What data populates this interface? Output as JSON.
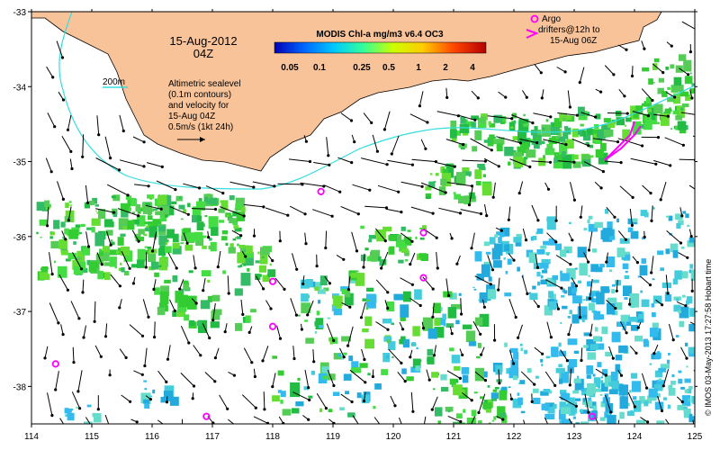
{
  "map": {
    "lon_range": [
      114,
      125
    ],
    "lat_range": [
      -38.5,
      -33
    ],
    "x_ticks": [
      "114",
      "115",
      "116",
      "117",
      "118",
      "119",
      "120",
      "121",
      "122",
      "123",
      "124",
      "125"
    ],
    "y_ticks": [
      "-33",
      "-34",
      "-35",
      "-36",
      "-37",
      "-38"
    ],
    "land_color": "#f9c39a",
    "sealevel_contour_color": "#33dddd"
  },
  "title_block": {
    "date": "15-Aug-2012",
    "time": "04Z"
  },
  "colorbar": {
    "title": "MODIS Chl-a mg/m3 v6.4 OC3",
    "labels": [
      "0.05",
      "0.1",
      "0.25",
      "0.5",
      "1",
      "2",
      "4"
    ],
    "colors": [
      "#0000b4",
      "#0066ff",
      "#00c8ff",
      "#33ff99",
      "#ccff00",
      "#ffcc00",
      "#ff4400",
      "#b40000"
    ]
  },
  "isobath_legend": {
    "label": "200m",
    "color": "#00d0d0"
  },
  "sealevel_legend": {
    "line1": "Altimetric sealevel",
    "line2": "(0.1m contours)",
    "line3": "and velocity for",
    "line4": "15-Aug 04Z",
    "line5": "0.5m/s (1kt 24h)"
  },
  "argo_legend": {
    "line1": "Argo",
    "line2": "drifters@12h to",
    "line3": "15-Aug 06Z",
    "marker_color": "#ff00ff"
  },
  "argo_floats": [
    {
      "lon": 118.8,
      "lat": -35.4
    },
    {
      "lon": 120.5,
      "lat": -35.95
    },
    {
      "lon": 120.5,
      "lat": -36.55
    },
    {
      "lon": 118.0,
      "lat": -36.6
    },
    {
      "lon": 118.0,
      "lat": -37.2
    },
    {
      "lon": 114.4,
      "lat": -37.7
    },
    {
      "lon": 116.9,
      "lat": -38.4
    },
    {
      "lon": 123.3,
      "lat": -38.4
    }
  ],
  "credit": "© IMOS 03-May-2013 17:27:58 Hobart time"
}
